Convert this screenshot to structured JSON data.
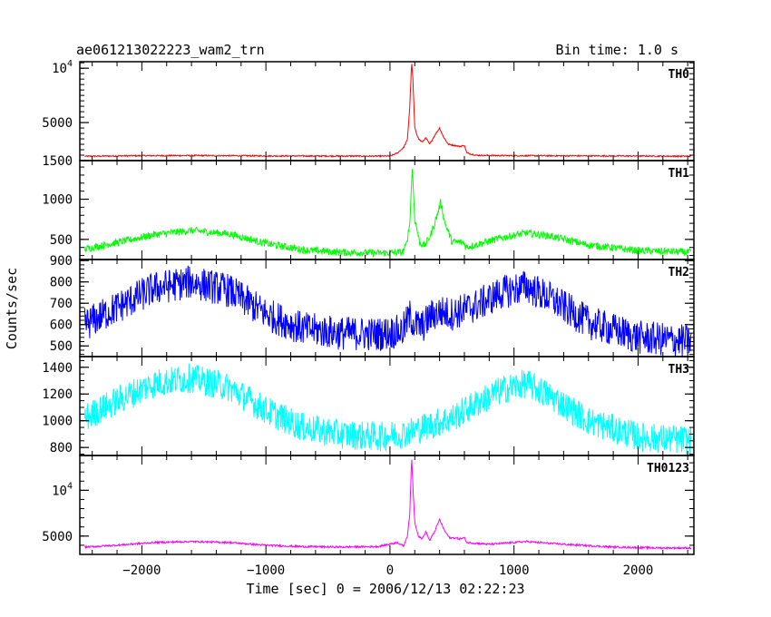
{
  "chart_data": {
    "type": "line",
    "title": "ae061213022223_wam2_trn",
    "bin_time": "Bin time: 1.0 s",
    "xlabel": "Time [sec] 0 = 2006/12/13 02:22:23",
    "ylabel": "Counts/sec",
    "xlim": [
      -2500,
      2450
    ],
    "x_ticks": [
      -2000,
      -1000,
      0,
      1000,
      2000
    ],
    "x_tick_labels": [
      "−2000",
      "−1000",
      "0",
      "1000",
      "2000"
    ],
    "panels": [
      {
        "name": "TH0",
        "color": "#ff0000",
        "ylim": [
          1500,
          10600
        ],
        "yticks": [
          {
            "value": 1500,
            "label": "1500"
          },
          {
            "value": 5000,
            "label": "5000"
          },
          {
            "value": 10000,
            "label": "10",
            "sup": "4"
          }
        ],
        "minor_step": 500,
        "noise": 60,
        "x": [
          -2460,
          -2000,
          -1500,
          -1000,
          -500,
          -100,
          0,
          60,
          110,
          140,
          160,
          175,
          185,
          200,
          230,
          260,
          290,
          320,
          360,
          400,
          430,
          470,
          520,
          560,
          600,
          620,
          700,
          1000,
          1500,
          2000,
          2430
        ],
        "y": [
          1900,
          1950,
          1960,
          1930,
          1920,
          1910,
          1920,
          2200,
          2700,
          3400,
          6500,
          10600,
          9000,
          4500,
          3500,
          3200,
          3600,
          3000,
          3800,
          4500,
          3700,
          3000,
          2900,
          2800,
          2900,
          2200,
          1980,
          1950,
          1940,
          1920,
          1900
        ]
      },
      {
        "name": "TH1",
        "color": "#00ff00",
        "ylim": [
          250,
          1480
        ],
        "yticks": [
          {
            "value": 500,
            "label": "500"
          },
          {
            "value": 1000,
            "label": "1000"
          }
        ],
        "minor_step": 100,
        "noise": 45,
        "x": [
          -2460,
          -2200,
          -1900,
          -1600,
          -1300,
          -1000,
          -700,
          -400,
          -100,
          100,
          130,
          160,
          180,
          200,
          240,
          280,
          330,
          380,
          410,
          440,
          500,
          600,
          610,
          900,
          1100,
          1300,
          1600,
          2000,
          2430
        ],
        "y": [
          380,
          460,
          560,
          610,
          570,
          450,
          370,
          340,
          330,
          340,
          420,
          700,
          1400,
          750,
          460,
          420,
          560,
          800,
          970,
          720,
          470,
          460,
          400,
          520,
          580,
          540,
          430,
          360,
          340
        ]
      },
      {
        "name": "TH2",
        "color": "#0000ff",
        "ylim": [
          450,
          905
        ],
        "yticks": [
          {
            "value": 500,
            "label": "500"
          },
          {
            "value": 600,
            "label": "600"
          },
          {
            "value": 700,
            "label": "700"
          },
          {
            "value": 800,
            "label": "800"
          },
          {
            "value": 900,
            "label": "900"
          }
        ],
        "minor_step": 20,
        "noise": 80,
        "x": [
          -2460,
          -2200,
          -1900,
          -1600,
          -1300,
          -1000,
          -700,
          -400,
          -100,
          100,
          160,
          200,
          260,
          330,
          400,
          500,
          700,
          900,
          1100,
          1300,
          1600,
          2000,
          2430
        ],
        "y": [
          600,
          680,
          770,
          800,
          760,
          650,
          580,
          560,
          555,
          570,
          640,
          600,
          590,
          640,
          660,
          650,
          690,
          750,
          780,
          720,
          610,
          540,
          520
        ]
      },
      {
        "name": "TH3",
        "color": "#00ffff",
        "ylim": [
          740,
          1480
        ],
        "yticks": [
          {
            "value": 800,
            "label": "800"
          },
          {
            "value": 1000,
            "label": "1000"
          },
          {
            "value": 1200,
            "label": "1200"
          },
          {
            "value": 1400,
            "label": "1400"
          }
        ],
        "minor_step": 50,
        "noise": 110,
        "x": [
          -2460,
          -2200,
          -1900,
          -1600,
          -1300,
          -1000,
          -700,
          -400,
          -100,
          100,
          300,
          500,
          700,
          900,
          1100,
          1300,
          1600,
          2000,
          2430
        ],
        "y": [
          1020,
          1150,
          1280,
          1320,
          1250,
          1080,
          950,
          900,
          880,
          900,
          960,
          1020,
          1130,
          1230,
          1280,
          1180,
          1000,
          880,
          850
        ]
      },
      {
        "name": "TH0123",
        "color": "#ff00ff",
        "ylim": [
          3000,
          13800
        ],
        "yticks": [
          {
            "value": 5000,
            "label": "5000"
          },
          {
            "value": 10000,
            "label": "10",
            "sup": "4"
          }
        ],
        "minor_step": 1000,
        "noise": 100,
        "x": [
          -2460,
          -2200,
          -1900,
          -1600,
          -1300,
          -1000,
          -700,
          -400,
          -100,
          60,
          110,
          140,
          160,
          175,
          185,
          200,
          230,
          260,
          290,
          320,
          360,
          400,
          440,
          480,
          520,
          560,
          600,
          620,
          800,
          1100,
          1400,
          1800,
          2200,
          2430
        ],
        "y": [
          3800,
          4000,
          4300,
          4400,
          4300,
          4000,
          3850,
          3800,
          3850,
          4300,
          3900,
          5000,
          7500,
          13600,
          10500,
          6500,
          5000,
          4700,
          5500,
          4500,
          5500,
          6800,
          5600,
          4800,
          4800,
          4700,
          4800,
          4300,
          4100,
          4400,
          4100,
          3800,
          3700,
          3700
        ]
      }
    ]
  }
}
